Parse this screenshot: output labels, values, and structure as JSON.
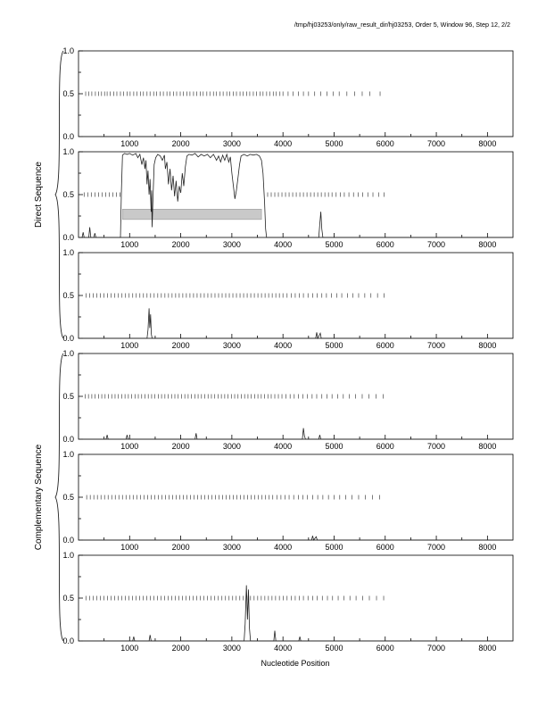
{
  "title": "/tmp/hj03253/only/raw_result_dir/hj03253, Order 5, Window 96, Step 12, 2/2",
  "xlabel": "Nucleotide Position",
  "group_labels": {
    "direct": "Direct Sequence",
    "complementary": "Complementary Sequence"
  },
  "axis": {
    "x_ticks": [
      1000,
      2000,
      3000,
      4000,
      5000,
      6000,
      7000,
      8000
    ],
    "x_minor_step": 500,
    "y_ticks": [
      {
        "value": 0,
        "label": "0.0"
      },
      {
        "value": 0.5,
        "label": "0.5"
      },
      {
        "value": 1,
        "label": "1.0"
      }
    ]
  },
  "chart_data": {
    "type": "line",
    "title": "/tmp/hj03253/only/raw_result_dir/hj03253, Order 5, Window 96, Step 12, 2/2",
    "xlabel": "Nucleotide Position",
    "xlim": [
      0,
      8500
    ],
    "ylim": [
      0,
      1
    ],
    "grid": false,
    "panels": [
      {
        "id": "direct-1",
        "group": "direct",
        "codon_ticks": [
          140,
          200,
          260,
          330,
          390,
          450,
          510,
          560,
          620,
          690,
          750,
          820,
          880,
          950,
          1010,
          1080,
          1140,
          1210,
          1270,
          1340,
          1400,
          1470,
          1530,
          1600,
          1660,
          1730,
          1790,
          1860,
          1920,
          1990,
          2050,
          2120,
          2180,
          2250,
          2310,
          2380,
          2440,
          2510,
          2570,
          2640,
          2700,
          2770,
          2830,
          2900,
          2960,
          3030,
          3090,
          3160,
          3220,
          3290,
          3350,
          3420,
          3480,
          3550,
          3610,
          3680,
          3740,
          3810,
          3870,
          3940,
          4000,
          4100,
          4200,
          4300,
          4400,
          4500,
          4620,
          4740,
          4860,
          4980,
          5100,
          5250,
          5400,
          5550,
          5700,
          5900
        ],
        "curve": [
          [
            0,
            0
          ],
          [
            8500,
            0
          ]
        ]
      },
      {
        "id": "direct-2",
        "group": "direct",
        "codon_ticks": [
          110,
          180,
          250,
          320,
          390,
          460,
          530,
          600,
          670,
          740,
          810,
          3700,
          3770,
          3840,
          3910,
          3980,
          4050,
          4120,
          4190,
          4260,
          4330,
          4400,
          4470,
          4540,
          4610,
          4680,
          4750,
          4820,
          4890,
          4960,
          5040,
          5120,
          5200,
          5290,
          5380,
          5470,
          5560,
          5660,
          5760,
          5870,
          5980
        ],
        "gene_bar": {
          "start": 860,
          "end": 3580,
          "y_bottom": 0.21,
          "y_top": 0.33
        },
        "curve": [
          [
            0,
            0
          ],
          [
            70,
            0
          ],
          [
            90,
            0.06
          ],
          [
            110,
            0
          ],
          [
            200,
            0
          ],
          [
            220,
            0.12
          ],
          [
            240,
            0
          ],
          [
            300,
            0
          ],
          [
            320,
            0.05
          ],
          [
            340,
            0
          ],
          [
            820,
            0
          ],
          [
            840,
            0.55
          ],
          [
            860,
            0.96
          ],
          [
            900,
            0.98
          ],
          [
            950,
            0.97
          ],
          [
            1000,
            0.98
          ],
          [
            1060,
            0.96
          ],
          [
            1120,
            0.98
          ],
          [
            1160,
            0.93
          ],
          [
            1200,
            0.97
          ],
          [
            1240,
            0.85
          ],
          [
            1270,
            0.93
          ],
          [
            1300,
            0.8
          ],
          [
            1320,
            0.9
          ],
          [
            1340,
            0.62
          ],
          [
            1360,
            0.78
          ],
          [
            1380,
            0.5
          ],
          [
            1400,
            0.68
          ],
          [
            1420,
            0.3
          ],
          [
            1430,
            0.55
          ],
          [
            1440,
            0.12
          ],
          [
            1460,
            0.5
          ],
          [
            1480,
            0.85
          ],
          [
            1510,
            0.93
          ],
          [
            1550,
            0.97
          ],
          [
            1600,
            0.95
          ],
          [
            1640,
            0.9
          ],
          [
            1680,
            0.96
          ],
          [
            1700,
            0.8
          ],
          [
            1730,
            0.88
          ],
          [
            1760,
            0.62
          ],
          [
            1790,
            0.8
          ],
          [
            1820,
            0.55
          ],
          [
            1850,
            0.72
          ],
          [
            1880,
            0.48
          ],
          [
            1910,
            0.66
          ],
          [
            1940,
            0.42
          ],
          [
            1970,
            0.6
          ],
          [
            2000,
            0.52
          ],
          [
            2030,
            0.75
          ],
          [
            2060,
            0.6
          ],
          [
            2090,
            0.82
          ],
          [
            2120,
            0.95
          ],
          [
            2160,
            0.97
          ],
          [
            2220,
            0.96
          ],
          [
            2280,
            0.98
          ],
          [
            2340,
            0.94
          ],
          [
            2400,
            0.97
          ],
          [
            2460,
            0.95
          ],
          [
            2520,
            0.97
          ],
          [
            2580,
            0.93
          ],
          [
            2640,
            0.97
          ],
          [
            2700,
            0.9
          ],
          [
            2740,
            0.95
          ],
          [
            2780,
            0.88
          ],
          [
            2820,
            0.96
          ],
          [
            2860,
            0.9
          ],
          [
            2900,
            0.97
          ],
          [
            2940,
            0.88
          ],
          [
            2970,
            0.94
          ],
          [
            3000,
            0.75
          ],
          [
            3030,
            0.6
          ],
          [
            3060,
            0.45
          ],
          [
            3090,
            0.55
          ],
          [
            3120,
            0.7
          ],
          [
            3150,
            0.85
          ],
          [
            3180,
            0.95
          ],
          [
            3240,
            0.97
          ],
          [
            3300,
            0.95
          ],
          [
            3360,
            0.97
          ],
          [
            3420,
            0.96
          ],
          [
            3480,
            0.97
          ],
          [
            3540,
            0.95
          ],
          [
            3580,
            0.9
          ],
          [
            3610,
            0.75
          ],
          [
            3640,
            0.4
          ],
          [
            3660,
            0.1
          ],
          [
            3680,
            0
          ],
          [
            4700,
            0
          ],
          [
            4720,
            0.15
          ],
          [
            4740,
            0.3
          ],
          [
            4760,
            0.1
          ],
          [
            4780,
            0
          ],
          [
            8500,
            0
          ]
        ]
      },
      {
        "id": "direct-3",
        "group": "direct",
        "codon_ticks": [
          150,
          220,
          290,
          360,
          430,
          500,
          570,
          640,
          710,
          780,
          850,
          920,
          990,
          1060,
          1130,
          1200,
          1270,
          1340,
          1410,
          1480,
          1550,
          1620,
          1690,
          1760,
          1830,
          1900,
          1970,
          2040,
          2110,
          2180,
          2250,
          2320,
          2390,
          2460,
          2530,
          2600,
          2670,
          2740,
          2810,
          2880,
          2950,
          3020,
          3090,
          3160,
          3230,
          3300,
          3370,
          3440,
          3510,
          3580,
          3650,
          3720,
          3790,
          3860,
          3930,
          4000,
          4080,
          4160,
          4240,
          4320,
          4400,
          4490,
          4580,
          4670,
          4760,
          4850,
          4950,
          5050,
          5150,
          5260,
          5370,
          5480,
          5600,
          5720,
          5850,
          5980
        ],
        "curve": [
          [
            0,
            0
          ],
          [
            1340,
            0
          ],
          [
            1360,
            0.1
          ],
          [
            1380,
            0.35
          ],
          [
            1395,
            0.12
          ],
          [
            1410,
            0.28
          ],
          [
            1425,
            0.05
          ],
          [
            1440,
            0
          ],
          [
            4640,
            0
          ],
          [
            4660,
            0.07
          ],
          [
            4680,
            0
          ],
          [
            4730,
            0.06
          ],
          [
            4750,
            0
          ],
          [
            8500,
            0
          ]
        ]
      },
      {
        "id": "complementary-1",
        "group": "complementary",
        "codon_ticks": [
          130,
          195,
          260,
          325,
          390,
          455,
          520,
          585,
          650,
          715,
          780,
          845,
          910,
          975,
          1040,
          1105,
          1170,
          1235,
          1300,
          1365,
          1430,
          1495,
          1560,
          1625,
          1690,
          1755,
          1820,
          1885,
          1950,
          2015,
          2080,
          2145,
          2210,
          2275,
          2340,
          2405,
          2470,
          2535,
          2600,
          2665,
          2730,
          2795,
          2860,
          2925,
          2990,
          3055,
          3120,
          3185,
          3250,
          3315,
          3380,
          3445,
          3510,
          3575,
          3640,
          3705,
          3770,
          3840,
          3910,
          3980,
          4060,
          4140,
          4220,
          4300,
          4390,
          4480,
          4570,
          4660,
          4760,
          4860,
          4960,
          5070,
          5180,
          5300,
          5420,
          5550,
          5680,
          5820,
          5960
        ],
        "curve": [
          [
            0,
            0
          ],
          [
            540,
            0
          ],
          [
            560,
            0.05
          ],
          [
            580,
            0
          ],
          [
            930,
            0
          ],
          [
            950,
            0.05
          ],
          [
            970,
            0
          ],
          [
            2280,
            0
          ],
          [
            2300,
            0.07
          ],
          [
            2320,
            0
          ],
          [
            4380,
            0
          ],
          [
            4400,
            0.13
          ],
          [
            4420,
            0.04
          ],
          [
            4440,
            0
          ],
          [
            4700,
            0
          ],
          [
            4720,
            0.05
          ],
          [
            4740,
            0
          ],
          [
            8500,
            0
          ]
        ]
      },
      {
        "id": "complementary-2",
        "group": "complementary",
        "codon_ticks": [
          160,
          230,
          300,
          370,
          440,
          510,
          580,
          650,
          720,
          790,
          860,
          930,
          1000,
          1070,
          1140,
          1210,
          1280,
          1350,
          1420,
          1490,
          1560,
          1630,
          1700,
          1770,
          1840,
          1910,
          1980,
          2050,
          2120,
          2190,
          2260,
          2330,
          2400,
          2470,
          2540,
          2610,
          2680,
          2750,
          2820,
          2890,
          2960,
          3030,
          3100,
          3170,
          3240,
          3310,
          3380,
          3450,
          3520,
          3590,
          3660,
          3730,
          3800,
          3880,
          3960,
          4040,
          4120,
          4210,
          4300,
          4390,
          4480,
          4580,
          4680,
          4780,
          4890,
          5000,
          5110,
          5230,
          5350,
          5480,
          5610,
          5750,
          5890
        ],
        "curve": [
          [
            0,
            0
          ],
          [
            4560,
            0
          ],
          [
            4580,
            0.05
          ],
          [
            4600,
            0
          ],
          [
            4650,
            0.04
          ],
          [
            4670,
            0
          ],
          [
            8500,
            0
          ]
        ]
      },
      {
        "id": "complementary-3",
        "group": "complementary",
        "codon_ticks": [
          145,
          215,
          285,
          355,
          425,
          495,
          565,
          635,
          705,
          775,
          845,
          915,
          985,
          1055,
          1125,
          1195,
          1265,
          1335,
          1405,
          1475,
          1545,
          1615,
          1685,
          1755,
          1825,
          1895,
          1965,
          2035,
          2105,
          2175,
          2245,
          2315,
          2385,
          2455,
          2525,
          2595,
          2665,
          2735,
          2805,
          2875,
          2945,
          3015,
          3085,
          3155,
          3225,
          3295,
          3365,
          3435,
          3505,
          3575,
          3645,
          3715,
          3785,
          3855,
          3930,
          4005,
          4080,
          4160,
          4240,
          4320,
          4400,
          4490,
          4580,
          4670,
          4770,
          4870,
          4970,
          5080,
          5190,
          5310,
          5430,
          5560,
          5690,
          5830,
          5970
        ],
        "curve": [
          [
            0,
            0
          ],
          [
            1060,
            0
          ],
          [
            1080,
            0.05
          ],
          [
            1100,
            0
          ],
          [
            1380,
            0
          ],
          [
            1400,
            0.07
          ],
          [
            1420,
            0
          ],
          [
            3240,
            0
          ],
          [
            3260,
            0.2
          ],
          [
            3285,
            0.65
          ],
          [
            3305,
            0.25
          ],
          [
            3325,
            0.6
          ],
          [
            3345,
            0.15
          ],
          [
            3365,
            0
          ],
          [
            3820,
            0
          ],
          [
            3840,
            0.12
          ],
          [
            3860,
            0
          ],
          [
            4310,
            0
          ],
          [
            4330,
            0.05
          ],
          [
            4350,
            0
          ],
          [
            8500,
            0
          ]
        ]
      }
    ]
  }
}
